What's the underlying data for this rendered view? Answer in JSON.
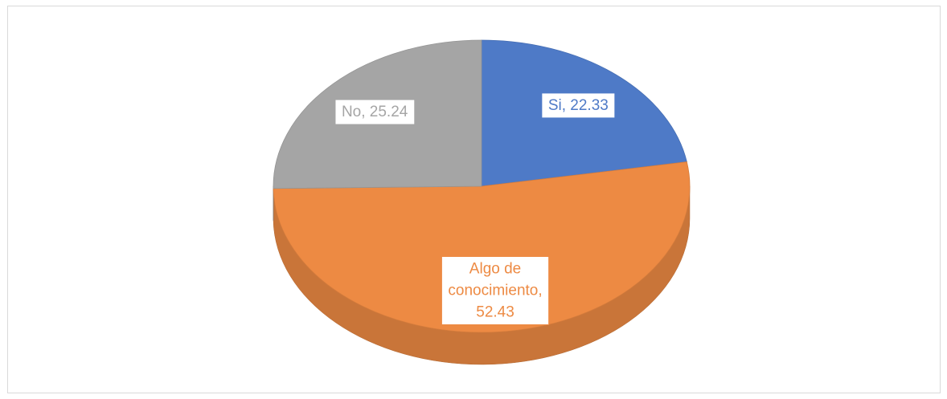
{
  "chart_data": {
    "type": "pie",
    "categories": [
      "Si",
      "Algo de conocimiento",
      "No"
    ],
    "values": [
      22.33,
      52.43,
      25.24
    ],
    "value_labels": [
      "Si, 22.33",
      "Algo de conocimiento, 52.43",
      "No, 25.24"
    ],
    "colors": [
      "#4e7ac7",
      "#ed8a43",
      "#a5a5a5"
    ]
  }
}
